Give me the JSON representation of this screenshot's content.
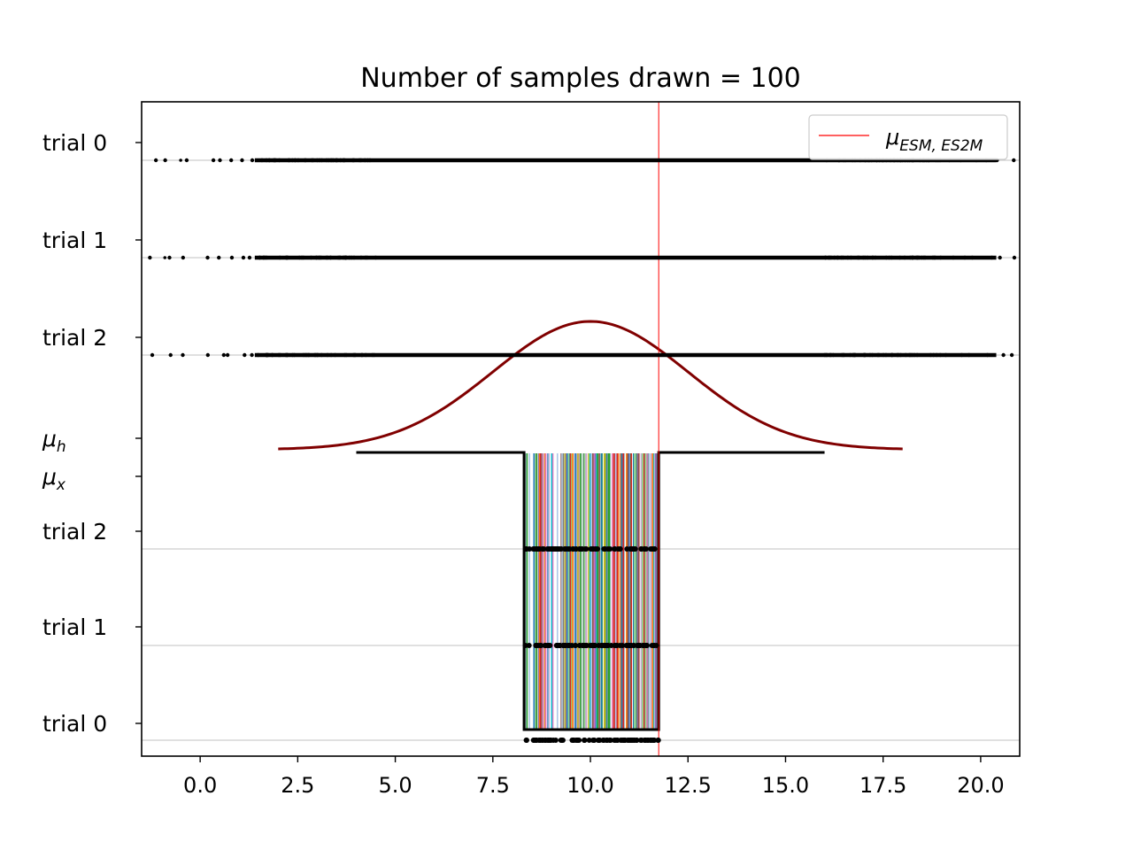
{
  "chart_data": {
    "type": "scatter",
    "title": "Number of samples drawn = 100",
    "xlabel": "",
    "ylabel": "",
    "xlim": [
      -1.5,
      21.0
    ],
    "x_ticks": [
      "0.0",
      "2.5",
      "5.0",
      "7.5",
      "10.0",
      "12.5",
      "15.0",
      "17.5",
      "20.0"
    ],
    "x_tick_values": [
      0,
      2.5,
      5,
      7.5,
      10,
      12.5,
      15,
      17.5,
      20
    ],
    "y_tick_labels": [
      {
        "id": "trial-0-top",
        "text": "trial 0",
        "math": false
      },
      {
        "id": "trial-1-top",
        "text": "trial 1",
        "math": false
      },
      {
        "id": "trial-2-top",
        "text": "trial 2",
        "math": false
      },
      {
        "id": "mu-h",
        "text": "μ",
        "sub": "h",
        "math": true
      },
      {
        "id": "mu-x",
        "text": "μ",
        "sub": "x",
        "math": true
      },
      {
        "id": "trial-2-bottom",
        "text": "trial 2",
        "math": false
      },
      {
        "id": "trial-1-bottom",
        "text": "trial 1",
        "math": false
      },
      {
        "id": "trial-0-bottom",
        "text": "trial 0",
        "math": false
      }
    ],
    "grid": "horizontal lines at each trial row",
    "legend": {
      "placement": "top-right",
      "entries": [
        {
          "label": "μ",
          "sub": "ESM, ES2M",
          "color": "#ff0000"
        }
      ]
    },
    "reference_line": {
      "x": 11.75,
      "color": "#ff0000"
    },
    "gaussian": {
      "mean": 10.0,
      "sd": 2.5,
      "x_range": [
        2.0,
        18.0
      ],
      "color": "#800000"
    },
    "mean_estimate_range": [
      8.3,
      11.75
    ],
    "mu_x_line": {
      "x_range": [
        4.0,
        16.0
      ]
    },
    "sample_range_top": [
      -1.5,
      21.0
    ],
    "sample_range_bottom": [
      8.3,
      11.75
    ],
    "n_samples": 100,
    "colors": {
      "axis": "#000000",
      "grid": "#c0c0c0",
      "points": "#000000",
      "palette": [
        "#1f77b4",
        "#ff7f0e",
        "#2ca02c",
        "#d62728",
        "#9467bd",
        "#8c564b",
        "#e377c2",
        "#7f7f7f",
        "#bcbd22",
        "#17becf",
        "#aec7e8",
        "#98df8a",
        "#c5b0d5"
      ]
    }
  }
}
